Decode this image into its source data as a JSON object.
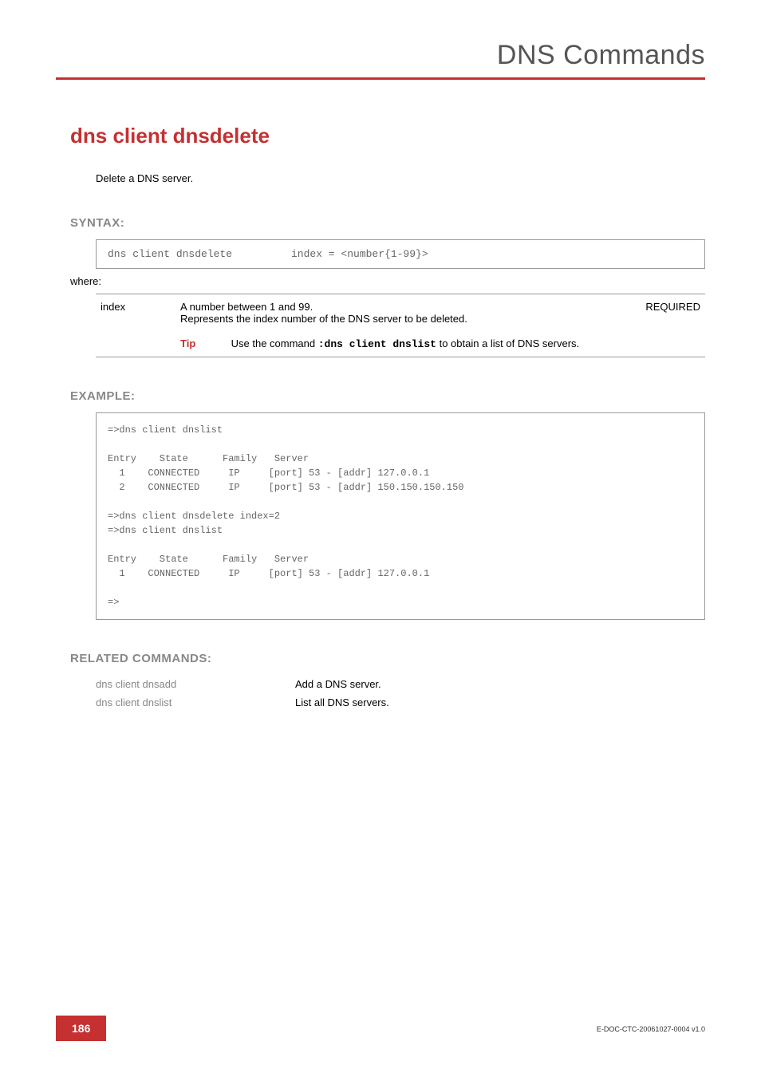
{
  "header": {
    "title": "DNS Commands",
    "rule_color": "#c53030"
  },
  "command": {
    "title": "dns client dnsdelete",
    "description": "Delete a DNS server."
  },
  "syntax": {
    "heading": "SYNTAX:",
    "command": "dns client dnsdelete",
    "args": "index = <number{1-99}>",
    "where_label": "where:",
    "params": [
      {
        "name": "index",
        "desc_line1": "A number between 1 and 99.",
        "desc_line2": "Represents the index number of the DNS server to be deleted.",
        "required": "REQUIRED",
        "tip_label": "Tip",
        "tip_prefix": "Use the command ",
        "tip_cmd": ":dns client dnslist",
        "tip_suffix": " to obtain a list of DNS servers."
      }
    ]
  },
  "example": {
    "heading": "EXAMPLE:",
    "content": "=>dns client dnslist\n\nEntry    State      Family   Server\n  1    CONNECTED     IP     [port] 53 - [addr] 127.0.0.1\n  2    CONNECTED     IP     [port] 53 - [addr] 150.150.150.150\n\n=>dns client dnsdelete index=2\n=>dns client dnslist\n\nEntry    State      Family   Server\n  1    CONNECTED     IP     [port] 53 - [addr] 127.0.0.1\n\n=>"
  },
  "related": {
    "heading": "RELATED COMMANDS:",
    "rows": [
      {
        "cmd": "dns client dnsadd",
        "desc": "Add a DNS server."
      },
      {
        "cmd": "dns client dnslist",
        "desc": "List all DNS servers."
      }
    ]
  },
  "footer": {
    "page": "186",
    "doc_id": "E-DOC-CTC-20061027-0004 v1.0"
  },
  "colors": {
    "accent": "#c53030",
    "muted": "#888888",
    "mono": "#666666"
  }
}
